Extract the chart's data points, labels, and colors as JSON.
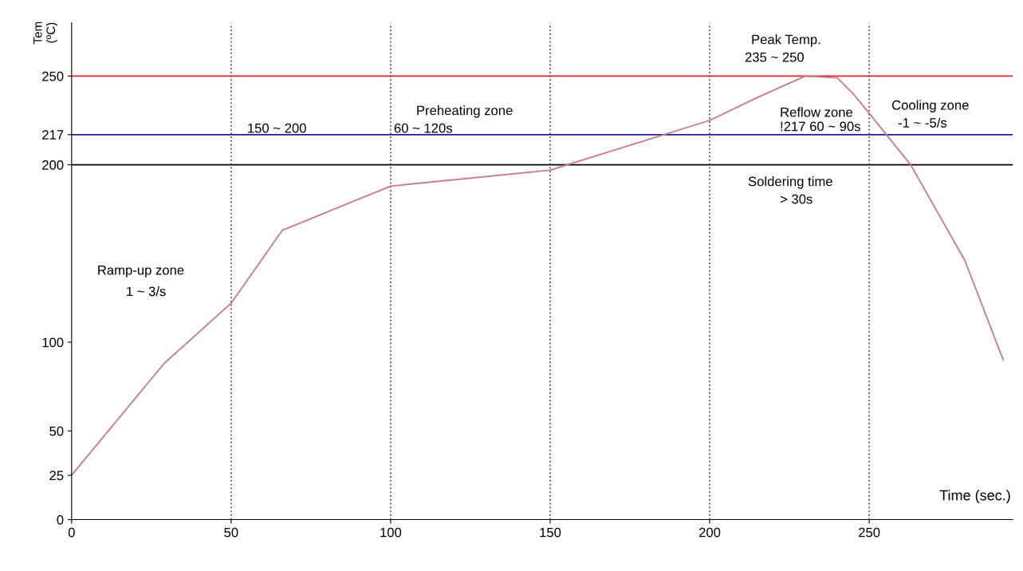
{
  "chart_data": {
    "type": "line",
    "xlabel": "Time (sec.)",
    "ylabel": "Tem\n(ºC)",
    "x": [
      0,
      29,
      50,
      66,
      100,
      150,
      175,
      200,
      215,
      230,
      240,
      245,
      250,
      263,
      280,
      292
    ],
    "series": [
      {
        "color": "#c87a85",
        "values": [
          25,
          88,
          122,
          163,
          188,
          197,
          211,
          225,
          238,
          250,
          249,
          240,
          229,
          200,
          146,
          90
        ]
      }
    ],
    "xlim": [
      0,
      295
    ],
    "ylim": [
      0,
      280
    ],
    "xticks": [
      0,
      50,
      100,
      150,
      200,
      250
    ],
    "yticks": [
      0,
      25,
      50,
      100,
      200,
      217,
      250
    ],
    "grid": false,
    "legend": false,
    "marker": "none",
    "line_style": "solid",
    "ref_lines": [
      {
        "axis": "y",
        "value": 250,
        "color": "#e02020",
        "line_style": "solid"
      },
      {
        "axis": "y",
        "value": 217,
        "color": "#2020a0",
        "line_style": "solid"
      },
      {
        "axis": "y",
        "value": 200,
        "color": "#000000",
        "line_style": "solid"
      },
      {
        "axis": "x",
        "value": 50,
        "color": "#555555",
        "line_style": "dotted"
      },
      {
        "axis": "x",
        "value": 100,
        "color": "#555555",
        "line_style": "dotted"
      },
      {
        "axis": "x",
        "value": 150,
        "color": "#555555",
        "line_style": "dotted"
      },
      {
        "axis": "x",
        "value": 200,
        "color": "#555555",
        "line_style": "dotted"
      },
      {
        "axis": "x",
        "value": 250,
        "color": "#555555",
        "line_style": "dotted"
      }
    ],
    "annotations": [
      "Ramp-up zone",
      "1 ~ 3/s",
      "Preheating zone",
      "150 ~ 200",
      "60 ~ 120s",
      "Peak Temp.",
      "235 ~ 250",
      "Reflow zone",
      "!217 60 ~ 90s",
      "Soldering time",
      "> 30s",
      "Cooling zone",
      "-1 ~ -5/s"
    ]
  }
}
